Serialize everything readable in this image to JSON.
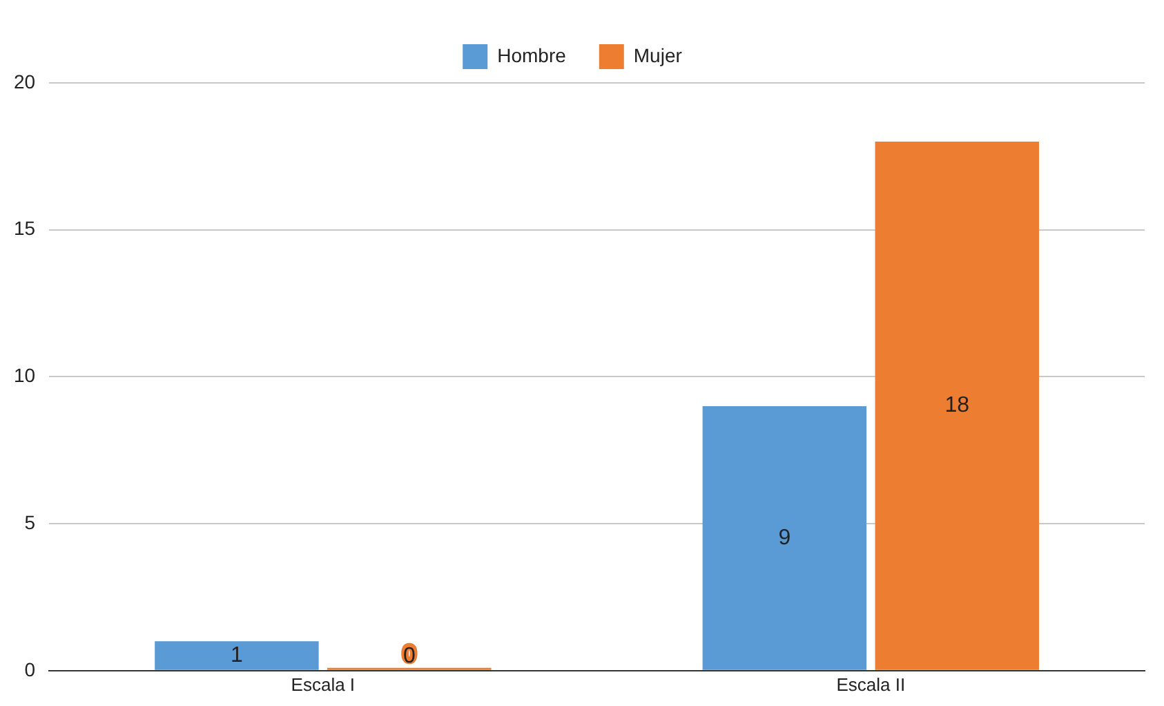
{
  "chart_data": {
    "type": "bar",
    "categories": [
      "Escala I",
      "Escala II"
    ],
    "series": [
      {
        "name": "Hombre",
        "color": "#5b9bd5",
        "values": [
          1,
          9
        ]
      },
      {
        "name": "Mujer",
        "color": "#ed7d31",
        "values": [
          0,
          18
        ]
      }
    ],
    "ylim": [
      0,
      20
    ],
    "yticks": [
      0,
      5,
      10,
      15,
      20
    ],
    "grid": "y",
    "legend": "top",
    "data_labels": true
  }
}
